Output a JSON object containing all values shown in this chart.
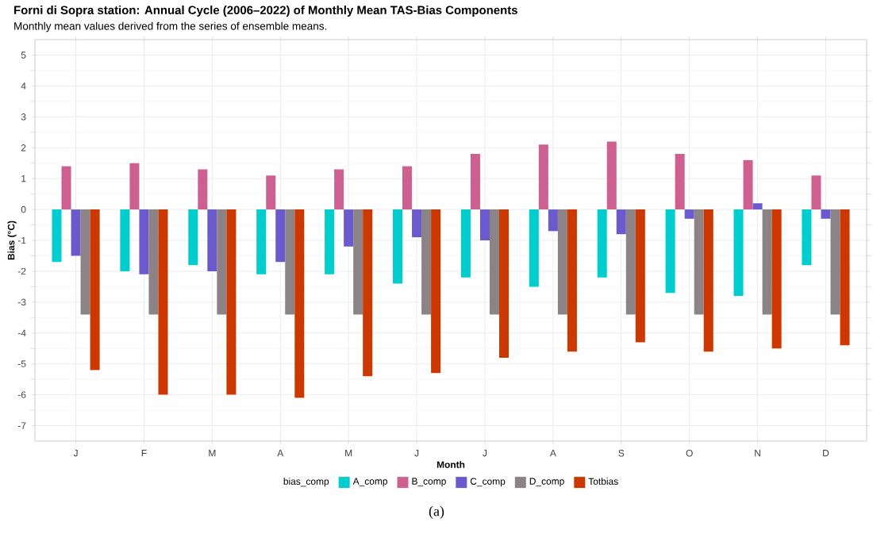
{
  "chart_data": {
    "type": "bar",
    "title": "Forni di Sopra station: Annual Cycle (2006–2022) of Monthly Mean TAS-Bias Components",
    "subtitle": "Monthly mean values derived from the series of ensemble means.",
    "xlabel": "Month",
    "ylabel": "Bias (°C)",
    "legend_title": "bias_comp",
    "categories": [
      "J",
      "F",
      "M",
      "A",
      "M",
      "J",
      "J",
      "A",
      "S",
      "O",
      "N",
      "D"
    ],
    "series": [
      {
        "name": "A_comp",
        "color": "#00cdcd",
        "values": [
          -1.7,
          -2.0,
          -1.8,
          -2.1,
          -2.1,
          -2.4,
          -2.2,
          -2.5,
          -2.2,
          -2.7,
          -2.8,
          -1.8
        ]
      },
      {
        "name": "B_comp",
        "color": "#cd6090",
        "values": [
          1.4,
          1.5,
          1.3,
          1.1,
          1.3,
          1.4,
          1.8,
          2.1,
          2.2,
          1.8,
          1.6,
          1.1
        ]
      },
      {
        "name": "C_comp",
        "color": "#6a5acd",
        "values": [
          -1.5,
          -2.1,
          -2.0,
          -1.7,
          -1.2,
          -0.9,
          -1.0,
          -0.7,
          -0.8,
          -0.3,
          0.2,
          -0.3
        ]
      },
      {
        "name": "D_comp",
        "color": "#8b8386",
        "values": [
          -3.4,
          -3.4,
          -3.4,
          -3.4,
          -3.4,
          -3.4,
          -3.4,
          -3.4,
          -3.4,
          -3.4,
          -3.4,
          -3.4
        ]
      },
      {
        "name": "Totbias",
        "color": "#cd3700",
        "values": [
          -5.2,
          -6.0,
          -6.0,
          -6.1,
          -5.4,
          -5.3,
          -4.8,
          -4.6,
          -4.3,
          -4.6,
          -4.5,
          -4.4
        ]
      }
    ],
    "ylim": [
      -7.5,
      5.5
    ],
    "yticks": [
      -7,
      -6,
      -5,
      -4,
      -3,
      -2,
      -1,
      0,
      1,
      2,
      3,
      4,
      5
    ],
    "grid": true,
    "legend": "bottom",
    "annotations": [
      "(a)"
    ]
  }
}
